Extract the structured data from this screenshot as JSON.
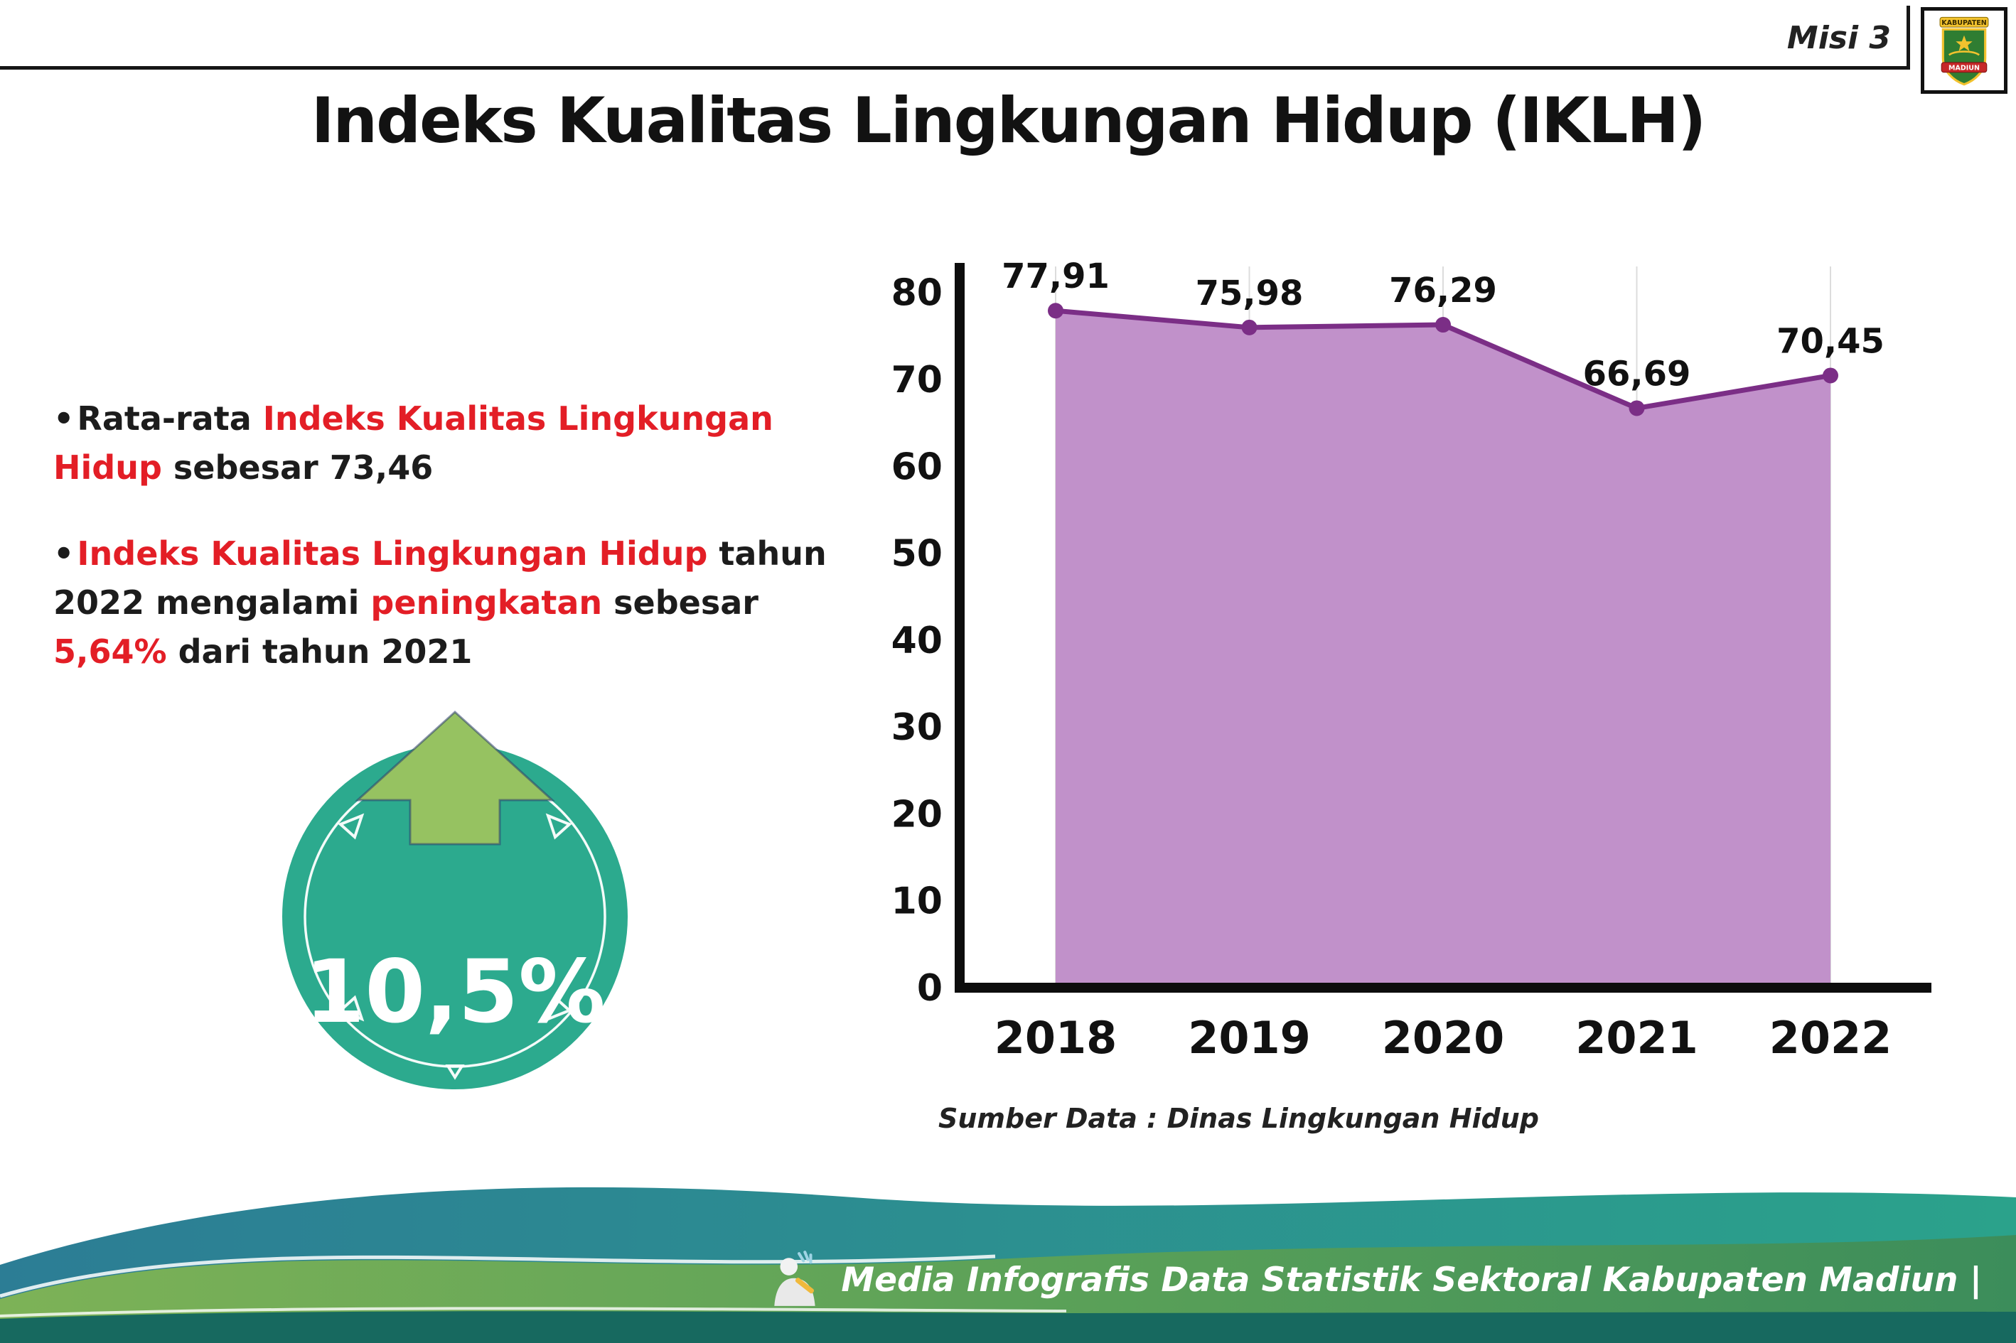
{
  "colors": {
    "area_fill": "#c191ca",
    "line": "#7b2e86",
    "point": "#7b2e86",
    "grid": "#dcdcdc",
    "axis": "#0d0d0d",
    "label": "#111111",
    "red_accent": "#e31e26",
    "badge_teal": "#2caa8e",
    "arrow_green": "#96c261",
    "footer_dark": "#17695f"
  },
  "header": {
    "misi": "Misi 3",
    "title": "Indeks Kualitas Lingkungan Hidup (IKLH)",
    "logo_top": "KABUPATEN",
    "logo_bottom": "MADIUN"
  },
  "bullets": {
    "b1": {
      "s1": "Rata-rata ",
      "s2": "Indeks Kualitas Lingkungan Hidup",
      "s3": " sebesar 73,46"
    },
    "b2": {
      "s1": "Indeks Kualitas Lingkungan Hidup",
      "s2": " tahun 2022 mengalami ",
      "s3": "peningkatan",
      "s4": " sebesar ",
      "s5": "5,64%",
      "s6": " dari tahun 2021"
    }
  },
  "badge": {
    "value": "10,5%"
  },
  "chart_data": {
    "type": "area",
    "title": "Indeks Kualitas Lingkungan Hidup (IKLH)",
    "categories": [
      "2018",
      "2019",
      "2020",
      "2021",
      "2022"
    ],
    "values": [
      77.91,
      75.98,
      76.29,
      66.69,
      70.45
    ],
    "value_labels": [
      "77,91",
      "75,98",
      "76,29",
      "66,69",
      "70,45"
    ],
    "ylabel": "",
    "xlabel": "",
    "ylim": [
      0,
      80
    ],
    "yticks": [
      0,
      10,
      20,
      30,
      40,
      50,
      60,
      70,
      80
    ],
    "grid": "vertical-light",
    "legend": "none",
    "source": "Sumber Data : Dinas Lingkungan Hidup"
  },
  "footer": {
    "credit": "Media Infografis Data Statistik Sektoral Kabupaten Madiun |"
  }
}
